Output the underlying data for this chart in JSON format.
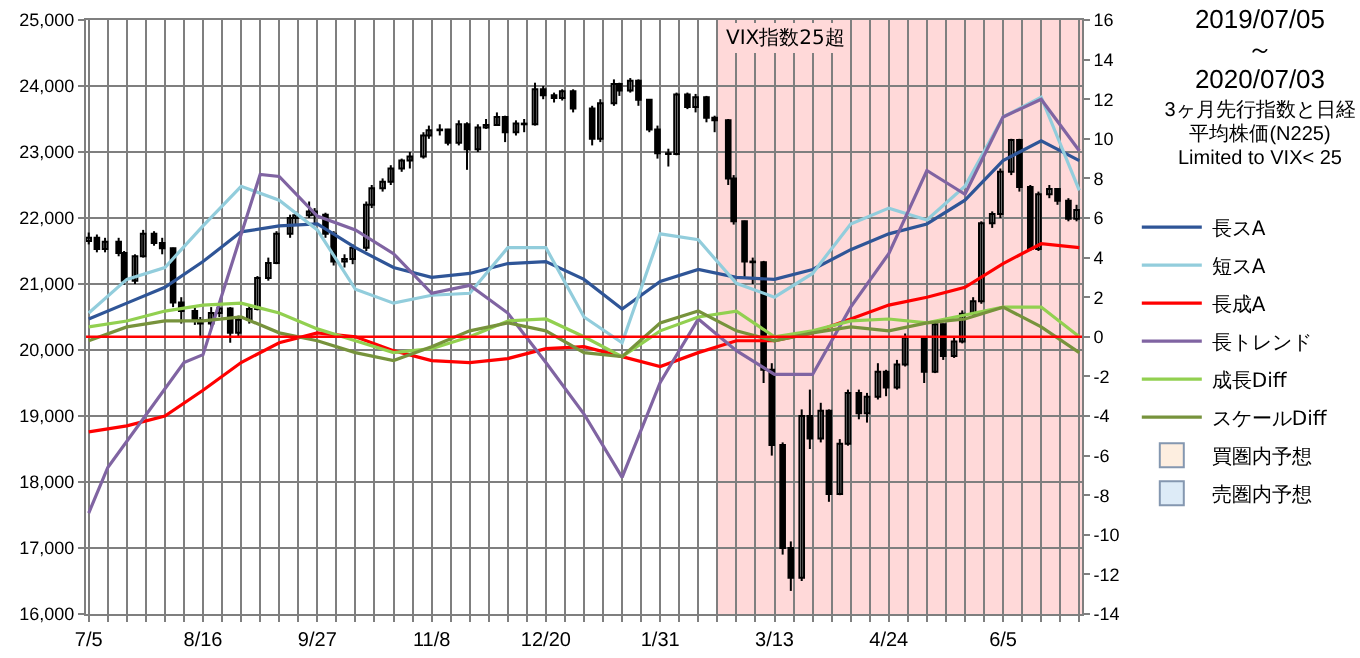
{
  "chart_data": {
    "type": "candlestick",
    "title": "2019/07/05 ～ 2020/07/03",
    "subtitle": "3ヶ月先行指数と日経平均株価(N225) Limited to  VIX< 25",
    "xlim": [
      "2019-07-04",
      "2020-07-04"
    ],
    "xticks": [
      {
        "value": "2019-07-05",
        "label": "7/5"
      },
      {
        "value": "2019-07-12",
        "label": null
      },
      {
        "value": "2019-07-19",
        "label": null
      },
      {
        "value": "2019-07-26",
        "label": null
      },
      {
        "value": "2019-08-02",
        "label": null
      },
      {
        "value": "2019-08-09",
        "label": null
      },
      {
        "value": "2019-08-16",
        "label": "8/16"
      },
      {
        "value": "2019-08-23",
        "label": null
      },
      {
        "value": "2019-08-30",
        "label": null
      },
      {
        "value": "2019-09-06",
        "label": null
      },
      {
        "value": "2019-09-13",
        "label": null
      },
      {
        "value": "2019-09-20",
        "label": null
      },
      {
        "value": "2019-09-27",
        "label": "9/27"
      },
      {
        "value": "2019-10-04",
        "label": null
      },
      {
        "value": "2019-10-11",
        "label": null
      },
      {
        "value": "2019-10-18",
        "label": null
      },
      {
        "value": "2019-10-25",
        "label": null
      },
      {
        "value": "2019-11-01",
        "label": null
      },
      {
        "value": "2019-11-08",
        "label": "11/8"
      },
      {
        "value": "2019-11-15",
        "label": null
      },
      {
        "value": "2019-11-22",
        "label": null
      },
      {
        "value": "2019-11-29",
        "label": null
      },
      {
        "value": "2019-12-06",
        "label": null
      },
      {
        "value": "2019-12-13",
        "label": null
      },
      {
        "value": "2019-12-20",
        "label": "12/20"
      },
      {
        "value": "2019-12-27",
        "label": null
      },
      {
        "value": "2020-01-03",
        "label": null
      },
      {
        "value": "2020-01-10",
        "label": null
      },
      {
        "value": "2020-01-17",
        "label": null
      },
      {
        "value": "2020-01-24",
        "label": null
      },
      {
        "value": "2020-01-31",
        "label": "1/31"
      },
      {
        "value": "2020-02-07",
        "label": null
      },
      {
        "value": "2020-02-14",
        "label": null
      },
      {
        "value": "2020-02-21",
        "label": null
      },
      {
        "value": "2020-02-28",
        "label": null
      },
      {
        "value": "2020-03-06",
        "label": null
      },
      {
        "value": "2020-03-13",
        "label": "3/13"
      },
      {
        "value": "2020-03-20",
        "label": null
      },
      {
        "value": "2020-03-27",
        "label": null
      },
      {
        "value": "2020-04-03",
        "label": null
      },
      {
        "value": "2020-04-10",
        "label": null
      },
      {
        "value": "2020-04-17",
        "label": null
      },
      {
        "value": "2020-04-24",
        "label": "4/24"
      },
      {
        "value": "2020-05-01",
        "label": null
      },
      {
        "value": "2020-05-08",
        "label": null
      },
      {
        "value": "2020-05-15",
        "label": null
      },
      {
        "value": "2020-05-22",
        "label": null
      },
      {
        "value": "2020-05-29",
        "label": null
      },
      {
        "value": "2020-06-05",
        "label": "6/5"
      },
      {
        "value": "2020-06-12",
        "label": null
      },
      {
        "value": "2020-06-19",
        "label": null
      },
      {
        "value": "2020-06-26",
        "label": null
      },
      {
        "value": "2020-07-03",
        "label": null
      }
    ],
    "ylim": [
      16000,
      25000
    ],
    "yticks": [
      {
        "value": 16000,
        "label": "16,000"
      },
      {
        "value": 17000,
        "label": "17,000"
      },
      {
        "value": 18000,
        "label": "18,000"
      },
      {
        "value": 19000,
        "label": "19,000"
      },
      {
        "value": 20000,
        "label": "20,000"
      },
      {
        "value": 21000,
        "label": "21,000"
      },
      {
        "value": 22000,
        "label": "22,000"
      },
      {
        "value": 23000,
        "label": "23,000"
      },
      {
        "value": 24000,
        "label": "24,000"
      },
      {
        "value": 25000,
        "label": "25,000"
      }
    ],
    "y2lim": [
      -14,
      16
    ],
    "y2ticks": [
      -14,
      -12,
      -10,
      -8,
      -6,
      -4,
      -2,
      0,
      2,
      4,
      6,
      8,
      10,
      12,
      14,
      16
    ],
    "grid": true,
    "legend": "right",
    "ref_lines": [
      {
        "axis": "y2",
        "value": 0,
        "color": "#ff0000"
      }
    ],
    "bands": [
      {
        "axis": "x",
        "from": "2020-02-21",
        "to": "2020-07-04",
        "label": "VIX指数25超",
        "color": "#ffd9d9"
      }
    ],
    "series": [
      {
        "name": "長スA",
        "type": "line",
        "axis": "y2",
        "color": "#2f5597",
        "x": [
          "2019-07-05",
          "2019-07-19",
          "2019-08-02",
          "2019-08-16",
          "2019-08-30",
          "2019-09-13",
          "2019-09-27",
          "2019-10-11",
          "2019-10-25",
          "2019-11-08",
          "2019-11-22",
          "2019-12-06",
          "2019-12-20",
          "2020-01-03",
          "2020-01-17",
          "2020-01-31",
          "2020-02-14",
          "2020-02-28",
          "2020-03-13",
          "2020-03-27",
          "2020-04-10",
          "2020-04-24",
          "2020-05-08",
          "2020-05-22",
          "2020-06-05",
          "2020-06-19",
          "2020-07-03"
        ],
        "values": [
          0.9,
          1.7,
          2.5,
          3.8,
          5.3,
          5.6,
          5.7,
          4.5,
          3.5,
          3.0,
          3.2,
          3.7,
          3.8,
          2.9,
          1.4,
          2.8,
          3.4,
          3.0,
          2.9,
          3.4,
          4.4,
          5.2,
          5.7,
          6.9,
          8.9,
          9.9,
          8.9
        ]
      },
      {
        "name": "短スA",
        "type": "line",
        "axis": "y2",
        "color": "#92cddc",
        "x": [
          "2019-07-05",
          "2019-07-19",
          "2019-08-02",
          "2019-08-16",
          "2019-08-30",
          "2019-09-13",
          "2019-09-27",
          "2019-10-11",
          "2019-10-25",
          "2019-11-08",
          "2019-11-22",
          "2019-12-06",
          "2019-12-20",
          "2020-01-03",
          "2020-01-17",
          "2020-01-31",
          "2020-02-14",
          "2020-02-28",
          "2020-03-13",
          "2020-03-27",
          "2020-04-10",
          "2020-04-24",
          "2020-05-08",
          "2020-05-22",
          "2020-06-05",
          "2020-06-19",
          "2020-07-03"
        ],
        "values": [
          1.2,
          2.9,
          3.5,
          5.6,
          7.6,
          6.9,
          5.4,
          2.4,
          1.7,
          2.1,
          2.2,
          4.5,
          4.5,
          1.0,
          -0.3,
          5.2,
          4.9,
          2.7,
          2.0,
          3.2,
          5.7,
          6.5,
          5.9,
          7.6,
          11.1,
          12.1,
          7.4
        ]
      },
      {
        "name": "長成A",
        "type": "line",
        "axis": "y2",
        "color": "#ff0000",
        "x": [
          "2019-07-05",
          "2019-07-19",
          "2019-08-02",
          "2019-08-16",
          "2019-08-30",
          "2019-09-13",
          "2019-09-27",
          "2019-10-11",
          "2019-10-25",
          "2019-11-08",
          "2019-11-22",
          "2019-12-06",
          "2019-12-20",
          "2020-01-03",
          "2020-01-17",
          "2020-01-31",
          "2020-02-14",
          "2020-02-28",
          "2020-03-13",
          "2020-03-27",
          "2020-04-10",
          "2020-04-24",
          "2020-05-08",
          "2020-05-22",
          "2020-06-05",
          "2020-06-19",
          "2020-07-03"
        ],
        "values": [
          -4.8,
          -4.5,
          -4.0,
          -2.7,
          -1.3,
          -0.3,
          0.2,
          0.0,
          -0.7,
          -1.2,
          -1.3,
          -1.1,
          -0.6,
          -0.5,
          -1.0,
          -1.5,
          -0.8,
          -0.2,
          -0.2,
          0.2,
          0.9,
          1.6,
          2.0,
          2.5,
          3.7,
          4.7,
          4.5
        ]
      },
      {
        "name": "長トレンド",
        "type": "line",
        "axis": "y2",
        "color": "#8064a2",
        "x": [
          "2019-07-05",
          "2019-07-12",
          "2019-08-09",
          "2019-08-16",
          "2019-09-06",
          "2019-09-13",
          "2019-09-27",
          "2019-10-11",
          "2019-10-25",
          "2019-11-08",
          "2019-11-22",
          "2019-12-06",
          "2019-12-20",
          "2020-01-03",
          "2020-01-17",
          "2020-01-31",
          "2020-02-14",
          "2020-02-28",
          "2020-03-13",
          "2020-03-27",
          "2020-04-10",
          "2020-04-24",
          "2020-05-08",
          "2020-05-22",
          "2020-06-05",
          "2020-06-19",
          "2020-07-03"
        ],
        "values": [
          -8.9,
          -6.6,
          -1.3,
          -0.9,
          8.2,
          8.1,
          6.1,
          5.4,
          4.2,
          2.2,
          2.6,
          1.2,
          -1.3,
          -3.9,
          -7.1,
          -2.3,
          0.9,
          -0.7,
          -1.9,
          -1.9,
          1.5,
          4.2,
          8.4,
          7.2,
          11.1,
          12.0,
          9.4
        ]
      },
      {
        "name": "成長Diff",
        "type": "line",
        "axis": "y2",
        "color": "#92d050",
        "x": [
          "2019-07-05",
          "2019-07-19",
          "2019-08-02",
          "2019-08-16",
          "2019-08-30",
          "2019-09-13",
          "2019-09-27",
          "2019-10-11",
          "2019-10-25",
          "2019-11-08",
          "2019-11-22",
          "2019-12-06",
          "2019-12-20",
          "2020-01-03",
          "2020-01-17",
          "2020-01-31",
          "2020-02-14",
          "2020-02-28",
          "2020-03-13",
          "2020-03-27",
          "2020-04-10",
          "2020-04-24",
          "2020-05-08",
          "2020-05-22",
          "2020-06-05",
          "2020-06-19",
          "2020-07-03"
        ],
        "values": [
          0.5,
          0.8,
          1.3,
          1.6,
          1.7,
          1.2,
          0.4,
          -0.2,
          -0.8,
          -0.6,
          0.0,
          0.8,
          0.9,
          0.0,
          -1.0,
          0.3,
          1.0,
          1.3,
          0.0,
          0.3,
          0.8,
          0.9,
          0.7,
          1.1,
          1.5,
          1.5,
          0.0
        ]
      },
      {
        "name": "スケールDiff",
        "type": "line",
        "axis": "y2",
        "color": "#77933c",
        "x": [
          "2019-07-05",
          "2019-07-19",
          "2019-08-02",
          "2019-08-16",
          "2019-08-30",
          "2019-09-13",
          "2019-09-27",
          "2019-10-11",
          "2019-10-25",
          "2019-11-08",
          "2019-11-22",
          "2019-12-06",
          "2019-12-20",
          "2020-01-03",
          "2020-01-17",
          "2020-01-31",
          "2020-02-14",
          "2020-02-28",
          "2020-03-13",
          "2020-03-27",
          "2020-04-10",
          "2020-04-24",
          "2020-05-08",
          "2020-05-22",
          "2020-06-05",
          "2020-06-19",
          "2020-07-03"
        ],
        "values": [
          -0.2,
          0.5,
          0.8,
          0.8,
          1.0,
          0.2,
          -0.2,
          -0.8,
          -1.2,
          -0.5,
          0.3,
          0.7,
          0.3,
          -0.8,
          -1.0,
          0.7,
          1.3,
          0.3,
          -0.2,
          0.2,
          0.5,
          0.3,
          0.7,
          0.9,
          1.5,
          0.5,
          -0.8
        ]
      },
      {
        "name": "買圏内予想",
        "type": "bar",
        "color": "#fdeee0"
      },
      {
        "name": "売圏内予想",
        "type": "bar",
        "color": "#ddebf7"
      },
      {
        "type": "candlestick",
        "color": "#000000",
        "x": [
          "2019-07-05",
          "2019-07-08",
          "2019-07-11",
          "2019-07-16",
          "2019-07-18",
          "2019-07-22",
          "2019-07-25",
          "2019-07-29",
          "2019-08-01",
          "2019-08-05",
          "2019-08-08",
          "2019-08-13",
          "2019-08-15",
          "2019-08-19",
          "2019-08-22",
          "2019-08-26",
          "2019-08-29",
          "2019-09-02",
          "2019-09-05",
          "2019-09-09",
          "2019-09-12",
          "2019-09-17",
          "2019-09-19",
          "2019-09-24",
          "2019-09-26",
          "2019-09-30",
          "2019-10-03",
          "2019-10-07",
          "2019-10-10",
          "2019-10-15",
          "2019-10-17",
          "2019-10-21",
          "2019-10-24",
          "2019-10-28",
          "2019-10-31",
          "2019-11-05",
          "2019-11-07",
          "2019-11-11",
          "2019-11-14",
          "2019-11-18",
          "2019-11-21",
          "2019-11-25",
          "2019-11-28",
          "2019-12-02",
          "2019-12-05",
          "2019-12-09",
          "2019-12-12",
          "2019-12-16",
          "2019-12-19",
          "2019-12-23",
          "2019-12-26",
          "2019-12-30",
          "2020-01-06",
          "2020-01-09",
          "2020-01-14",
          "2020-01-16",
          "2020-01-20",
          "2020-01-23",
          "2020-01-27",
          "2020-01-30",
          "2020-02-03",
          "2020-02-06",
          "2020-02-10",
          "2020-02-13",
          "2020-02-17",
          "2020-02-20",
          "2020-02-25",
          "2020-02-27",
          "2020-03-02",
          "2020-03-05",
          "2020-03-09",
          "2020-03-12",
          "2020-03-16",
          "2020-03-19",
          "2020-03-23",
          "2020-03-26",
          "2020-03-30",
          "2020-04-02",
          "2020-04-06",
          "2020-04-09",
          "2020-04-13",
          "2020-04-16",
          "2020-04-20",
          "2020-04-23",
          "2020-04-27",
          "2020-04-30",
          "2020-05-07",
          "2020-05-11",
          "2020-05-14",
          "2020-05-18",
          "2020-05-21",
          "2020-05-25",
          "2020-05-28",
          "2020-06-01",
          "2020-06-04",
          "2020-06-08",
          "2020-06-11",
          "2020-06-15",
          "2020-06-18",
          "2020-06-22",
          "2020-06-25",
          "2020-06-29",
          "2020-07-02"
        ],
        "ohlc": [
          [
            21650,
            21780,
            21600,
            21700
          ],
          [
            21700,
            21750,
            21480,
            21530
          ],
          [
            21530,
            21700,
            21480,
            21640
          ],
          [
            21640,
            21700,
            21420,
            21470
          ],
          [
            21470,
            21500,
            20990,
            21050
          ],
          [
            21050,
            21450,
            21000,
            21420
          ],
          [
            21420,
            21820,
            21400,
            21760
          ],
          [
            21760,
            21800,
            21580,
            21620
          ],
          [
            21620,
            21700,
            21450,
            21540
          ],
          [
            21540,
            21550,
            20650,
            20720
          ],
          [
            20720,
            20800,
            20400,
            20590
          ],
          [
            20590,
            20650,
            20380,
            20450
          ],
          [
            20450,
            20500,
            20180,
            20400
          ],
          [
            20400,
            20650,
            20350,
            20560
          ],
          [
            20560,
            20720,
            20500,
            20630
          ],
          [
            20630,
            20650,
            20110,
            20260
          ],
          [
            20260,
            20520,
            20200,
            20460
          ],
          [
            20460,
            20680,
            20400,
            20620
          ],
          [
            20620,
            21120,
            20600,
            21090
          ],
          [
            21090,
            21400,
            21050,
            21320
          ],
          [
            21320,
            21800,
            21300,
            21760
          ],
          [
            21760,
            22050,
            21700,
            22000
          ],
          [
            22000,
            22100,
            21900,
            22040
          ],
          [
            22040,
            22250,
            22000,
            22100
          ],
          [
            22100,
            22150,
            21900,
            22050
          ],
          [
            22050,
            22080,
            21700,
            21760
          ],
          [
            21760,
            21800,
            21280,
            21340
          ],
          [
            21340,
            21450,
            21250,
            21380
          ],
          [
            21380,
            21600,
            21300,
            21550
          ],
          [
            21550,
            22250,
            21500,
            22200
          ],
          [
            22200,
            22500,
            22150,
            22450
          ],
          [
            22450,
            22600,
            22400,
            22550
          ],
          [
            22550,
            22800,
            22500,
            22750
          ],
          [
            22750,
            22900,
            22700,
            22870
          ],
          [
            22870,
            23000,
            22750,
            22930
          ],
          [
            22930,
            23300,
            22900,
            23250
          ],
          [
            23250,
            23400,
            23200,
            23330
          ],
          [
            23330,
            23420,
            23250,
            23340
          ],
          [
            23340,
            23350,
            23100,
            23140
          ],
          [
            23140,
            23480,
            23100,
            23420
          ],
          [
            23420,
            23450,
            22730,
            23040
          ],
          [
            23040,
            23420,
            23000,
            23370
          ],
          [
            23370,
            23500,
            23350,
            23410
          ],
          [
            23410,
            23600,
            23400,
            23530
          ],
          [
            23530,
            23550,
            23150,
            23300
          ],
          [
            23300,
            23480,
            23250,
            23430
          ],
          [
            23430,
            23500,
            23300,
            23420
          ],
          [
            23420,
            24050,
            23400,
            23950
          ],
          [
            23950,
            24000,
            23800,
            23860
          ],
          [
            23860,
            23900,
            23750,
            23820
          ],
          [
            23820,
            23950,
            23780,
            23920
          ],
          [
            23920,
            23950,
            23600,
            23660
          ],
          [
            23660,
            23700,
            23100,
            23200
          ],
          [
            23200,
            23800,
            23150,
            23740
          ],
          [
            23740,
            24100,
            23700,
            24030
          ],
          [
            24030,
            24050,
            23850,
            23930
          ],
          [
            23930,
            24120,
            23900,
            24080
          ],
          [
            24080,
            24100,
            23700,
            23790
          ],
          [
            23790,
            23800,
            23300,
            23340
          ],
          [
            23340,
            23400,
            22900,
            22980
          ],
          [
            22980,
            23050,
            22780,
            22970
          ],
          [
            22970,
            23900,
            22950,
            23870
          ],
          [
            23870,
            23900,
            23650,
            23680
          ],
          [
            23680,
            23880,
            23600,
            23830
          ],
          [
            23830,
            23850,
            23450,
            23520
          ],
          [
            23520,
            23550,
            23300,
            23480
          ],
          [
            23480,
            23500,
            22500,
            22600
          ],
          [
            22600,
            22650,
            21900,
            21950
          ],
          [
            21950,
            21960,
            21100,
            21340
          ],
          [
            21340,
            21400,
            21000,
            21330
          ],
          [
            21330,
            21350,
            19500,
            19700
          ],
          [
            19700,
            19800,
            18400,
            18560
          ],
          [
            18560,
            18600,
            16900,
            17000
          ],
          [
            17000,
            17100,
            16350,
            16550
          ],
          [
            16550,
            19100,
            16500,
            19000
          ],
          [
            19000,
            19400,
            18500,
            18660
          ],
          [
            18660,
            19200,
            18600,
            19080
          ],
          [
            19080,
            19100,
            17700,
            17820
          ],
          [
            17820,
            18650,
            17800,
            18580
          ],
          [
            18580,
            19400,
            18550,
            19350
          ],
          [
            19350,
            19400,
            18950,
            19040
          ],
          [
            19040,
            19350,
            18900,
            19290
          ],
          [
            19290,
            19800,
            19250,
            19670
          ],
          [
            19670,
            19700,
            19300,
            19430
          ],
          [
            19430,
            19850,
            19400,
            19780
          ],
          [
            19780,
            20250,
            19750,
            20190
          ],
          [
            20190,
            20200,
            19500,
            19670
          ],
          [
            19670,
            20450,
            19650,
            20390
          ],
          [
            20390,
            20400,
            19850,
            19910
          ],
          [
            19910,
            20200,
            19880,
            20130
          ],
          [
            20130,
            20600,
            20100,
            20550
          ],
          [
            20550,
            20800,
            20500,
            20740
          ],
          [
            20740,
            21950,
            20700,
            21920
          ],
          [
            21920,
            22100,
            21850,
            22060
          ],
          [
            22060,
            22750,
            22000,
            22700
          ],
          [
            22700,
            23200,
            22650,
            23180
          ],
          [
            23180,
            23200,
            22400,
            22470
          ],
          [
            22470,
            22500,
            21500,
            21530
          ],
          [
            21530,
            22400,
            21500,
            22360
          ],
          [
            22360,
            22500,
            22300,
            22440
          ],
          [
            22440,
            22450,
            22200,
            22260
          ],
          [
            22260,
            22300,
            21950,
            21990
          ],
          [
            21990,
            22200,
            21950,
            22120
          ]
        ]
      }
    ]
  }
}
